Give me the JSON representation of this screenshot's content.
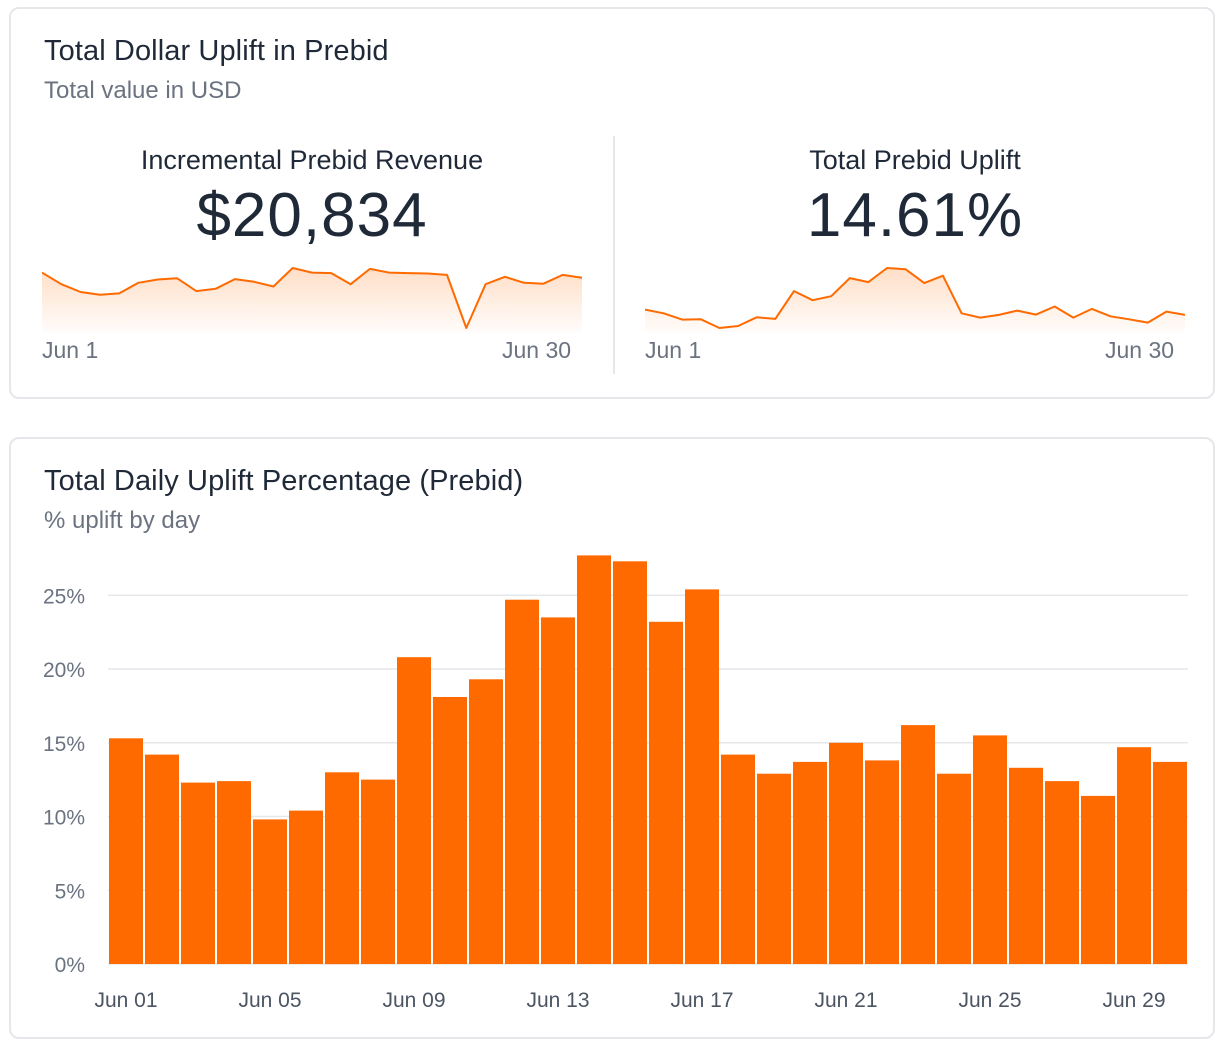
{
  "summary_card": {
    "title": "Total Dollar Uplift in Prebid",
    "subtitle": "Total value in USD",
    "metrics": [
      {
        "label": "Incremental Prebid Revenue",
        "value": "$20,834",
        "start_label": "Jun 1",
        "end_label": "Jun 30",
        "trend": [
          1300,
          1050,
          880,
          820,
          850,
          1080,
          1150,
          1180,
          900,
          950,
          1160,
          1100,
          1000,
          1400,
          1300,
          1290,
          1050,
          1380,
          1300,
          1290,
          1280,
          1250,
          100,
          1050,
          1210,
          1080,
          1060,
          1250,
          1190
        ]
      },
      {
        "label": "Total Prebid Uplift",
        "value": "14.61%",
        "start_label": "Jun 1",
        "end_label": "Jun 30",
        "trend": [
          15.3,
          14.2,
          12.3,
          12.4,
          9.8,
          10.4,
          13.0,
          12.5,
          20.8,
          18.1,
          19.3,
          24.7,
          23.5,
          27.7,
          27.3,
          23.2,
          25.4,
          14.2,
          12.9,
          13.7,
          15.0,
          13.8,
          16.2,
          12.9,
          15.5,
          13.3,
          12.4,
          11.4,
          14.7,
          13.7
        ]
      }
    ],
    "accent_color": "#ff6a00"
  },
  "daily_card": {
    "title": "Total Daily Uplift Percentage (Prebid)",
    "subtitle": "% uplift by day"
  },
  "chart_data": {
    "type": "bar",
    "categories": [
      "Jun 01",
      "Jun 02",
      "Jun 03",
      "Jun 04",
      "Jun 05",
      "Jun 06",
      "Jun 07",
      "Jun 08",
      "Jun 09",
      "Jun 10",
      "Jun 11",
      "Jun 12",
      "Jun 13",
      "Jun 14",
      "Jun 15",
      "Jun 16",
      "Jun 17",
      "Jun 18",
      "Jun 19",
      "Jun 20",
      "Jun 21",
      "Jun 22",
      "Jun 23",
      "Jun 24",
      "Jun 25",
      "Jun 26",
      "Jun 27",
      "Jun 28",
      "Jun 29",
      "Jun 30"
    ],
    "values": [
      15.3,
      14.2,
      12.3,
      12.4,
      9.8,
      10.4,
      13.0,
      12.5,
      20.8,
      18.1,
      19.3,
      24.7,
      23.5,
      27.7,
      27.3,
      23.2,
      25.4,
      14.2,
      12.9,
      13.7,
      15.0,
      13.8,
      16.2,
      12.9,
      15.5,
      13.3,
      12.4,
      11.4,
      14.7,
      13.7
    ],
    "x_tick_labels": [
      "Jun 01",
      "Jun 05",
      "Jun 09",
      "Jun 13",
      "Jun 17",
      "Jun 21",
      "Jun 25",
      "Jun 29"
    ],
    "y_ticks": [
      0,
      5,
      10,
      15,
      20,
      25
    ],
    "y_tick_labels": [
      "0%",
      "5%",
      "10%",
      "15%",
      "20%",
      "25%"
    ],
    "ylim": [
      0,
      28
    ],
    "grid": true,
    "bar_color": "#ff6a00",
    "grid_color": "#e5e7eb"
  }
}
